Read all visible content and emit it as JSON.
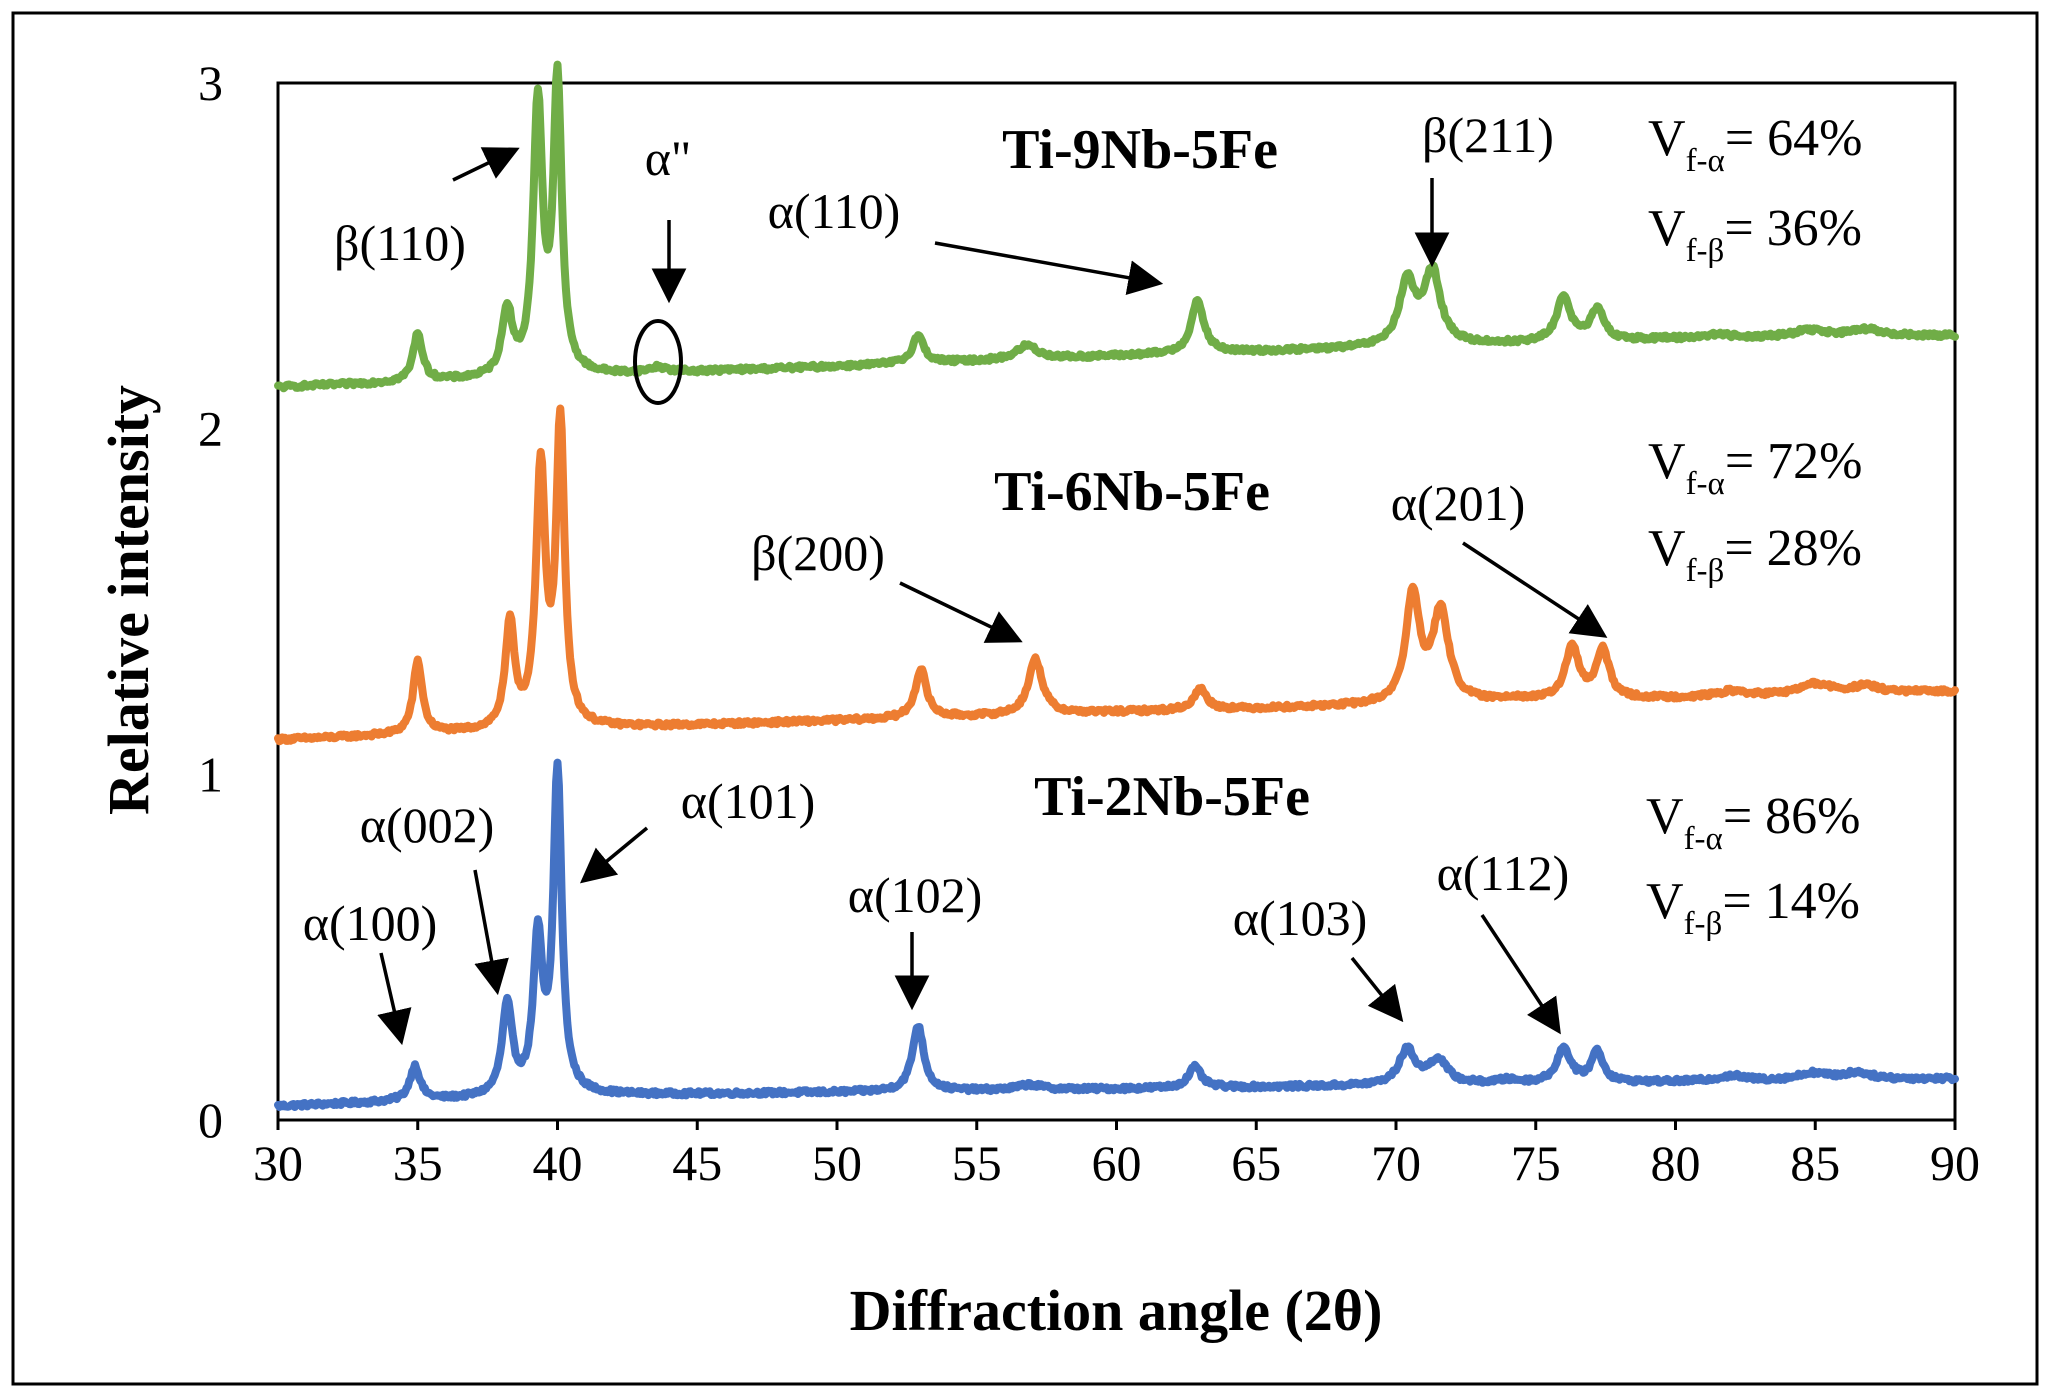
{
  "chart_data": {
    "type": "line",
    "xlabel": "Diffraction angle (2θ)",
    "ylabel": "Relative intensity",
    "xlim": [
      30,
      90
    ],
    "ylim": [
      0,
      3
    ],
    "xticks": [
      30,
      35,
      40,
      45,
      50,
      55,
      60,
      65,
      70,
      75,
      80,
      85,
      90
    ],
    "yticks": [
      0,
      1,
      2,
      3
    ],
    "grid": false,
    "series": [
      {
        "name": "Ti-2Nb-5Fe",
        "color": "#4472C4",
        "baseline": [
          [
            30,
            0.04
          ],
          [
            40,
            0.07
          ],
          [
            60,
            0.09
          ],
          [
            80,
            0.11
          ],
          [
            90,
            0.12
          ]
        ],
        "peaks": [
          {
            "x": 34.9,
            "h": 0.1,
            "w": 0.22
          },
          {
            "x": 38.2,
            "h": 0.26,
            "w": 0.22
          },
          {
            "x": 39.3,
            "h": 0.44,
            "w": 0.2
          },
          {
            "x": 40.0,
            "h": 0.93,
            "w": 0.18
          },
          {
            "x": 52.9,
            "h": 0.19,
            "w": 0.25
          },
          {
            "x": 56.9,
            "h": 0.015,
            "w": 0.5
          },
          {
            "x": 62.8,
            "h": 0.06,
            "w": 0.28
          },
          {
            "x": 70.4,
            "h": 0.1,
            "w": 0.35
          },
          {
            "x": 71.5,
            "h": 0.07,
            "w": 0.4
          },
          {
            "x": 74.0,
            "h": 0.01,
            "w": 0.5
          },
          {
            "x": 76.0,
            "h": 0.1,
            "w": 0.3
          },
          {
            "x": 77.2,
            "h": 0.09,
            "w": 0.25
          },
          {
            "x": 82.0,
            "h": 0.015,
            "w": 0.6
          },
          {
            "x": 84.9,
            "h": 0.02,
            "w": 0.6
          },
          {
            "x": 86.5,
            "h": 0.02,
            "w": 0.6
          }
        ]
      },
      {
        "name": "Ti-6Nb-5Fe",
        "color": "#ED7D31",
        "baseline": [
          [
            30,
            1.1
          ],
          [
            40,
            1.13
          ],
          [
            60,
            1.18
          ],
          [
            80,
            1.22
          ],
          [
            90,
            1.24
          ]
        ],
        "peaks": [
          {
            "x": 35.0,
            "h": 0.21,
            "w": 0.2
          },
          {
            "x": 38.3,
            "h": 0.3,
            "w": 0.2
          },
          {
            "x": 39.4,
            "h": 0.74,
            "w": 0.2
          },
          {
            "x": 40.1,
            "h": 0.87,
            "w": 0.18
          },
          {
            "x": 53.0,
            "h": 0.14,
            "w": 0.25
          },
          {
            "x": 57.1,
            "h": 0.16,
            "w": 0.3
          },
          {
            "x": 63.0,
            "h": 0.06,
            "w": 0.28
          },
          {
            "x": 70.6,
            "h": 0.31,
            "w": 0.3
          },
          {
            "x": 71.6,
            "h": 0.26,
            "w": 0.35
          },
          {
            "x": 74.2,
            "h": 0.01,
            "w": 0.5
          },
          {
            "x": 76.3,
            "h": 0.15,
            "w": 0.3
          },
          {
            "x": 77.4,
            "h": 0.14,
            "w": 0.28
          },
          {
            "x": 82.0,
            "h": 0.015,
            "w": 0.6
          },
          {
            "x": 85.0,
            "h": 0.03,
            "w": 0.7
          },
          {
            "x": 86.8,
            "h": 0.02,
            "w": 0.6
          }
        ]
      },
      {
        "name": "Ti-9Nb-5Fe",
        "color": "#70AD47",
        "baseline": [
          [
            30,
            2.12
          ],
          [
            40,
            2.15
          ],
          [
            60,
            2.21
          ],
          [
            80,
            2.26
          ],
          [
            90,
            2.27
          ]
        ],
        "peaks": [
          {
            "x": 35.0,
            "h": 0.14,
            "w": 0.2
          },
          {
            "x": 38.2,
            "h": 0.19,
            "w": 0.22
          },
          {
            "x": 39.3,
            "h": 0.78,
            "w": 0.2
          },
          {
            "x": 40.0,
            "h": 0.84,
            "w": 0.18
          },
          {
            "x": 43.6,
            "h": 0.015,
            "w": 0.35
          },
          {
            "x": 52.9,
            "h": 0.08,
            "w": 0.25
          },
          {
            "x": 56.8,
            "h": 0.04,
            "w": 0.45
          },
          {
            "x": 62.9,
            "h": 0.15,
            "w": 0.28
          },
          {
            "x": 70.4,
            "h": 0.18,
            "w": 0.35
          },
          {
            "x": 71.3,
            "h": 0.21,
            "w": 0.35
          },
          {
            "x": 76.0,
            "h": 0.13,
            "w": 0.3
          },
          {
            "x": 77.2,
            "h": 0.09,
            "w": 0.28
          },
          {
            "x": 81.5,
            "h": 0.01,
            "w": 0.6
          },
          {
            "x": 84.8,
            "h": 0.02,
            "w": 0.7
          },
          {
            "x": 86.8,
            "h": 0.02,
            "w": 0.6
          }
        ]
      }
    ]
  },
  "alloys": {
    "top": "Ti-9Nb-5Fe",
    "middle": "Ti-6Nb-5Fe",
    "bottom": "Ti-2Nb-5Fe"
  },
  "volume_fractions": {
    "top": {
      "alpha": "V",
      "alpha_sub": "f-α",
      "alpha_val": "= 64%",
      "beta": "V",
      "beta_sub": "f-β",
      "beta_val": "= 36%"
    },
    "middle": {
      "alpha": "V",
      "alpha_sub": "f-α",
      "alpha_val": "= 72%",
      "beta": "V",
      "beta_sub": "f-β",
      "beta_val": "= 28%"
    },
    "bottom": {
      "alpha": "V",
      "alpha_sub": "f-α",
      "alpha_val": "= 86%",
      "beta": "V",
      "beta_sub": "f-β",
      "beta_val": "= 14%"
    }
  },
  "annotations": {
    "beta110": "β(110)",
    "alpha_double_prime": "α\"",
    "alpha110": "α(110)",
    "beta211": "β(211)",
    "beta200": "β(200)",
    "alpha201": "α(201)",
    "alpha100": "α(100)",
    "alpha002": "α(002)",
    "alpha101": "α(101)",
    "alpha102": "α(102)",
    "alpha103": "α(103)",
    "alpha112": "α(112)"
  }
}
